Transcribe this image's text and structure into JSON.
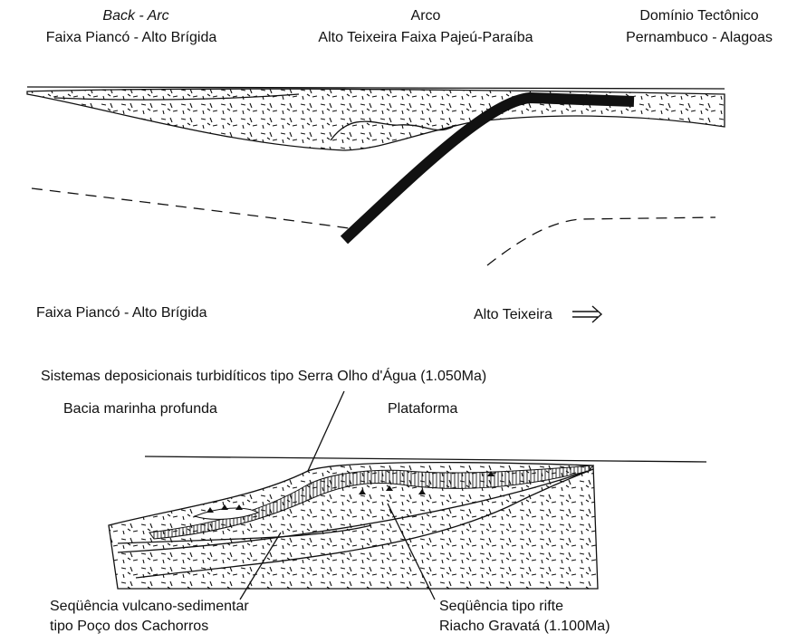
{
  "top_section": {
    "columns": [
      {
        "lines": [
          "Back - Arc",
          "Faixa Piancó - Alto Brígida"
        ]
      },
      {
        "lines": [
          "Arco",
          "Alto Teixeira Faixa Pajeú-Paraíba"
        ]
      },
      {
        "lines": [
          "Domínio Tectônico",
          "Pernambuco - Alagoas"
        ]
      }
    ],
    "lower_labels": [
      "Faixa Piancó - Alto Brígida",
      "Alto Teixeira"
    ]
  },
  "bottom_section": {
    "title": "Sistemas deposicionais turbidíticos tipo Serra Olho d'Água (1.050Ma)",
    "regions": [
      "Bacia marinha profunda",
      "Plataforma"
    ],
    "callouts": [
      {
        "lines": [
          "Seqüência vulcano-sedimentar",
          "tipo Poço dos Cachorros"
        ]
      },
      {
        "lines": [
          "Seqüência tipo rifte",
          "Riacho Gravatá (1.100Ma)"
        ]
      }
    ]
  }
}
